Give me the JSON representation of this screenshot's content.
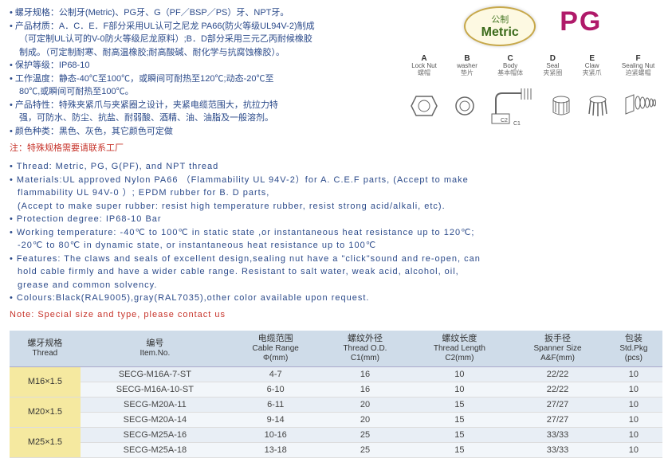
{
  "cnSpecs": {
    "lines": [
      {
        "cls": "bullet",
        "text": "螺牙规格：公制牙(Metric)、PG牙、G（PF／BSP／PS）牙、NPT牙。"
      },
      {
        "cls": "bullet",
        "text": "产品材质：A．C．E．F部分采用UL认可之尼龙 PA66(防火等级UL94V-2)制成"
      },
      {
        "cls": "indent",
        "text": "（可定制UL认可的V-0防火等级尼龙原料）;B．D部分采用三元乙丙耐候橡胶"
      },
      {
        "cls": "indent",
        "text": "制成。（可定制耐寒、耐高温橡胶;耐高酸碱、耐化学与抗腐蚀橡胶）。"
      },
      {
        "cls": "bullet",
        "text": "保护等级：IP68-10"
      },
      {
        "cls": "bullet",
        "text": "工作温度：静态-40℃至100℃，或瞬间可耐热至120℃;动态-20℃至"
      },
      {
        "cls": "indent",
        "text": "80℃,或瞬间可耐热至100℃。"
      },
      {
        "cls": "bullet",
        "text": "产品特性：特殊夹紧爪与夹紧圈之设计，夹紧电缆范围大，抗拉力特"
      },
      {
        "cls": "indent",
        "text": "强，可防水、防尘、抗盐、耐弱酸、酒精、油、油脂及一般溶剂。"
      },
      {
        "cls": "bullet",
        "text": "颜色种类：黑色、灰色，其它颜色可定做"
      }
    ],
    "note": "注：特殊规格需要请联系工厂"
  },
  "badges": {
    "metric": {
      "cn": "公制",
      "en": "Metric",
      "border": "#c7a84a",
      "bg": "#fdf9e2",
      "text_cn": "#4a7a2a",
      "text_en": "#3a6a1a"
    },
    "pg": {
      "text": "PG",
      "color": "#b01a6a"
    }
  },
  "parts": [
    {
      "letter": "A",
      "en": "Lock Nut",
      "cn": "螺帽"
    },
    {
      "letter": "B",
      "en": "washer",
      "cn": "垫片"
    },
    {
      "letter": "C",
      "en": "Body",
      "cn": "基本帽体"
    },
    {
      "letter": "D",
      "en": "Seal",
      "cn": "夹紧圈"
    },
    {
      "letter": "E",
      "en": "Claw",
      "cn": "夹紧爪"
    },
    {
      "letter": "F",
      "en": "Sealing Nut",
      "cn": "迫紧螺帽"
    }
  ],
  "enSpecs": {
    "lines": [
      {
        "cls": "bullet",
        "text": "Thread: Metric, PG, G(PF), and NPT thread"
      },
      {
        "cls": "bullet",
        "text": "Materials:UL approved Nylon PA66 （Flammability UL 94V-2）for A. C.E.F parts, (Accept to make"
      },
      {
        "cls": "cont",
        "text": "flammability UL 94V-0 ）; EPDM rubber for B. D parts,"
      },
      {
        "cls": "cont",
        "text": "(Accept to make super rubber: resist high temperature rubber, resist strong acid/alkali, etc)."
      },
      {
        "cls": "bullet",
        "text": "Protection degree: IP68-10 Bar"
      },
      {
        "cls": "bullet",
        "text": "Working temperature: -40℃ to 100℃ in static state ,or instantaneous heat resistance up to 120℃;"
      },
      {
        "cls": "cont",
        "text": "-20℃ to 80℃ in dynamic state, or instantaneous heat resistance up to 100℃"
      },
      {
        "cls": "bullet",
        "text": "Features: The claws and seals of excellent design,sealing nut have a \"click\"sound and re-open, can"
      },
      {
        "cls": "cont",
        "text": "hold cable firmly and have a wider cable range. Resistant to salt water, weak acid, alcohol, oil,"
      },
      {
        "cls": "cont",
        "text": "grease and common solvency."
      },
      {
        "cls": "bullet",
        "text": "Colours:Black(RAL9005),gray(RAL7035),other color available upon request."
      }
    ],
    "note": "Note: Special size and type, please contact us"
  },
  "table": {
    "header_bg": "#cfdce9",
    "thread_bg": "#f5e9a0",
    "columns": [
      {
        "cn": "螺牙规格",
        "en": "Thread",
        "unit": ""
      },
      {
        "cn": "编号",
        "en": "Item.No.",
        "unit": ""
      },
      {
        "cn": "电缆范围",
        "en": "Cable Range",
        "unit": "Φ(mm)"
      },
      {
        "cn": "螺纹外径",
        "en": "Thread O.D.",
        "unit": "C1(mm)"
      },
      {
        "cn": "螺纹长度",
        "en": "Thread Length",
        "unit": "C2(mm)"
      },
      {
        "cn": "扳手径",
        "en": "Spanner Size",
        "unit": "A&F(mm)"
      },
      {
        "cn": "包装",
        "en": "Std.Pkg",
        "unit": "(pcs)"
      }
    ],
    "groups": [
      {
        "thread": "M16×1.5",
        "rows": [
          {
            "item": "SECG-M16A-7-ST",
            "cable": "4-7",
            "od": "16",
            "len": "10",
            "span": "22/22",
            "pkg": "10"
          },
          {
            "item": "SECG-M16A-10-ST",
            "cable": "6-10",
            "od": "16",
            "len": "10",
            "span": "22/22",
            "pkg": "10"
          }
        ]
      },
      {
        "thread": "M20×1.5",
        "rows": [
          {
            "item": "SECG-M20A-11",
            "cable": "6-11",
            "od": "20",
            "len": "15",
            "span": "27/27",
            "pkg": "10"
          },
          {
            "item": "SECG-M20A-14",
            "cable": "9-14",
            "od": "20",
            "len": "15",
            "span": "27/27",
            "pkg": "10"
          }
        ]
      },
      {
        "thread": "M25×1.5",
        "rows": [
          {
            "item": "SECG-M25A-16",
            "cable": "10-16",
            "od": "25",
            "len": "15",
            "span": "33/33",
            "pkg": "10"
          },
          {
            "item": "SECG-M25A-18",
            "cable": "13-18",
            "od": "25",
            "len": "15",
            "span": "33/33",
            "pkg": "10"
          }
        ]
      }
    ]
  }
}
